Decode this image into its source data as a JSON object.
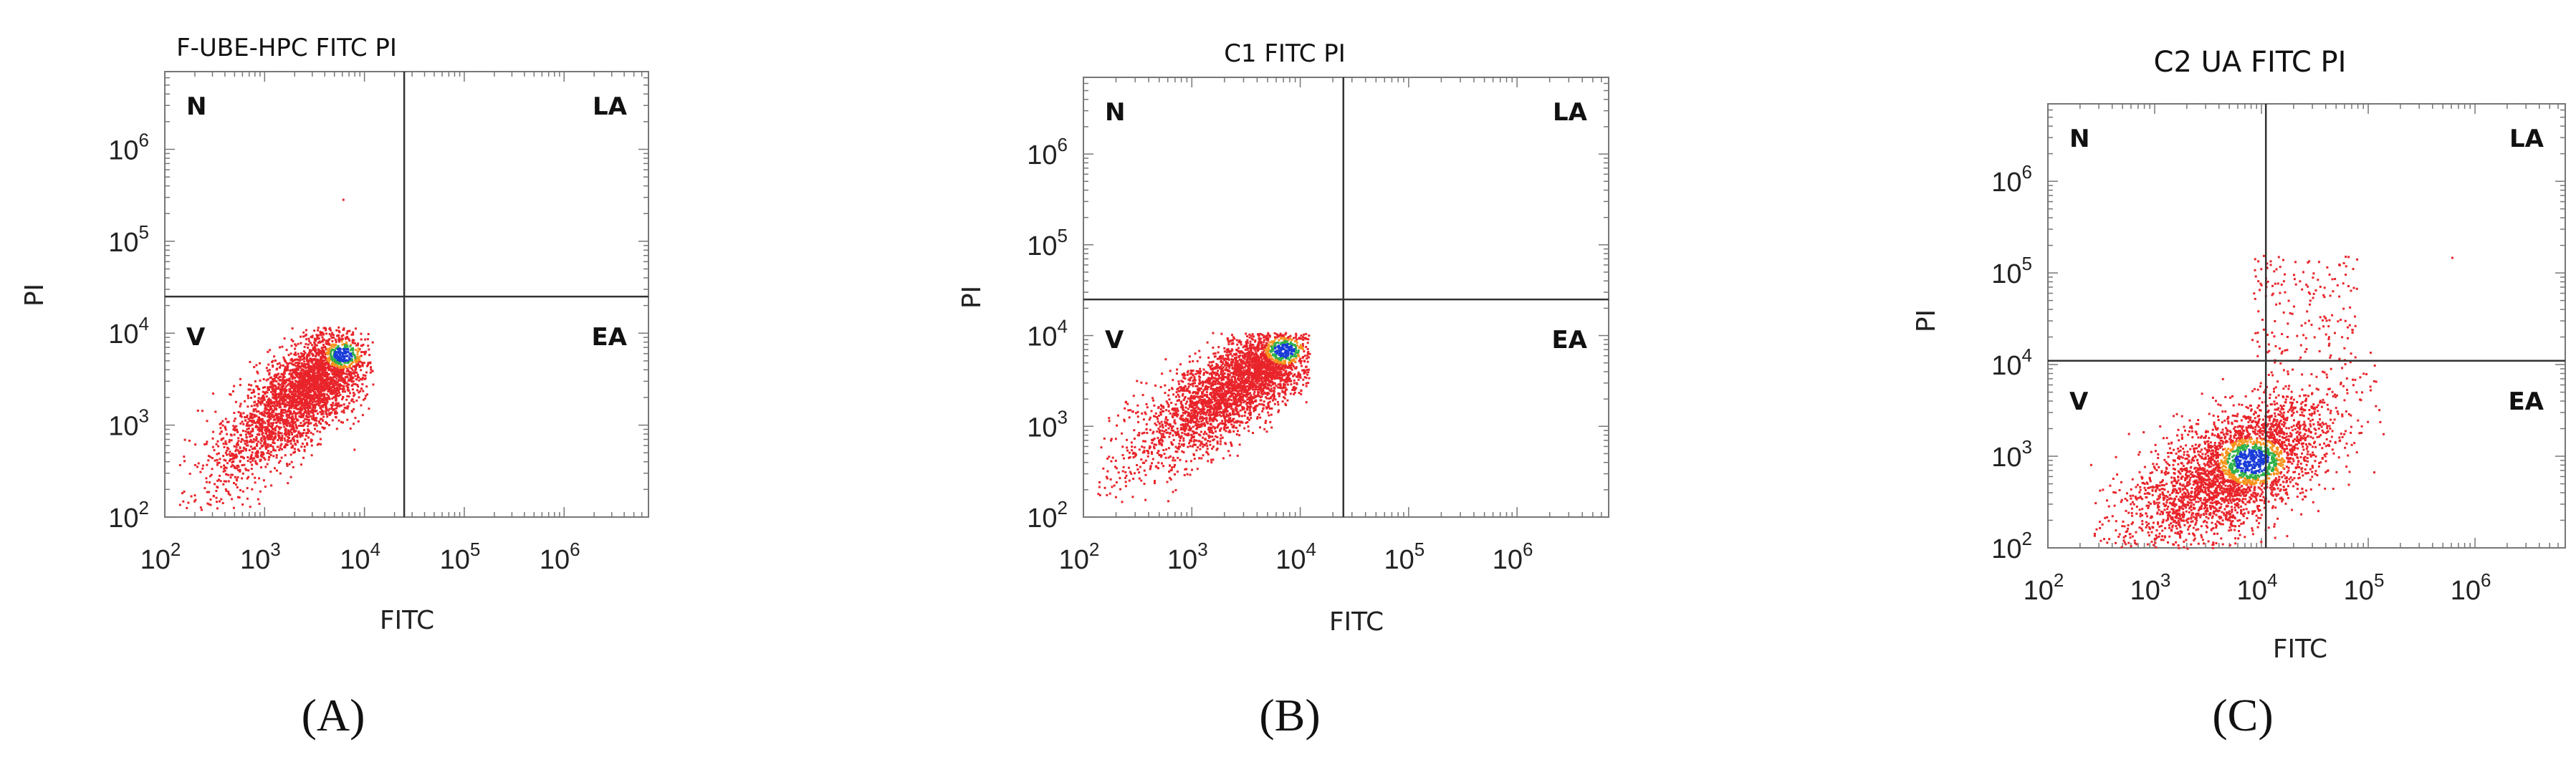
{
  "chart_data": [
    {
      "type": "scatter",
      "title": "F-UBE-HPC FITC PI",
      "xlabel": "FITC",
      "ylabel": "PI",
      "xscale": "log",
      "yscale": "log",
      "xlim": [
        100,
        7000000
      ],
      "ylim": [
        100,
        7000000
      ],
      "xticks": [
        "2",
        "3",
        "4",
        "5",
        "6"
      ],
      "yticks": [
        "2",
        "3",
        "4",
        "5",
        "6"
      ],
      "gate": {
        "x": 25000,
        "y": 25000
      },
      "quadrants": [
        "N",
        "LA",
        "V",
        "EA"
      ],
      "panel_label": "(A)",
      "density_center": {
        "x": 6000,
        "y": 6000
      },
      "population_range": {
        "x": [
          120,
          12000
        ],
        "y": [
          120,
          12000
        ]
      },
      "outliers": [
        {
          "x": 6000,
          "y": 290000
        }
      ]
    },
    {
      "type": "scatter",
      "title": "C1 FITC PI",
      "xlabel": "FITC",
      "ylabel": "PI",
      "xscale": "log",
      "yscale": "log",
      "xlim": [
        100,
        7000000
      ],
      "ylim": [
        100,
        7000000
      ],
      "xticks": [
        "2",
        "3",
        "4",
        "5",
        "6"
      ],
      "yticks": [
        "2",
        "3",
        "4",
        "5",
        "6"
      ],
      "gate": {
        "x": 25000,
        "y": 25000
      },
      "quadrants": [
        "N",
        "LA",
        "V",
        "EA"
      ],
      "panel_label": "(B)",
      "density_center": {
        "x": 7000,
        "y": 7000
      },
      "population_range": {
        "x": [
          130,
          12000
        ],
        "y": [
          150,
          11000
        ]
      },
      "outliers": []
    },
    {
      "type": "scatter",
      "title": "C2 UA FITC PI",
      "xlabel": "FITC",
      "ylabel": "PI",
      "xscale": "log",
      "yscale": "log",
      "xlim": [
        100,
        7000000
      ],
      "ylim": [
        100,
        7000000
      ],
      "xticks": [
        "2",
        "3",
        "4",
        "5",
        "6"
      ],
      "yticks": [
        "2",
        "3",
        "4",
        "5",
        "6"
      ],
      "gate": {
        "x": 11000,
        "y": 11000
      },
      "quadrants": [
        "N",
        "LA",
        "V",
        "EA"
      ],
      "panel_label": "(C)",
      "density_center": {
        "x": 8000,
        "y": 900
      },
      "population_range": {
        "x": [
          120,
          700000
        ],
        "y": [
          100,
          160000
        ]
      },
      "outliers": [
        {
          "x": 600000,
          "y": 150000
        }
      ]
    }
  ],
  "colors": {
    "low_density": "#e8242a",
    "mid_density": "#f7941d",
    "high_density": "#2fb14a",
    "core_density": "#1a3cd8",
    "gate_lines": "#333333",
    "frame": "#777777"
  }
}
